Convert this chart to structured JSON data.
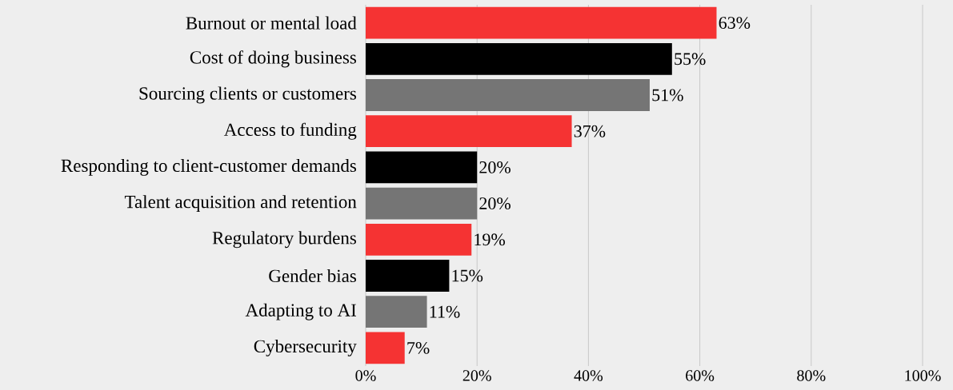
{
  "chart_data": {
    "type": "bar",
    "orientation": "horizontal",
    "categories": [
      "Burnout or mental load",
      "Cost of doing business",
      "Sourcing clients or customers",
      "Access to funding",
      "Responding to client-customer demands",
      "Talent acquisition and retention",
      "Regulatory burdens",
      "Gender bias",
      "Adapting to AI",
      "Cybersecurity"
    ],
    "values": [
      63,
      55,
      51,
      37,
      20,
      20,
      19,
      15,
      11,
      7
    ],
    "value_labels": [
      "63%",
      "55%",
      "51%",
      "37%",
      "20%",
      "20%",
      "19%",
      "15%",
      "11%",
      "7%"
    ],
    "colors": [
      "#f53333",
      "#000000",
      "#757575",
      "#f53333",
      "#000000",
      "#757575",
      "#f53333",
      "#000000",
      "#757575",
      "#f53333"
    ],
    "xlim": [
      0,
      100
    ],
    "xticks": [
      {
        "value": 0,
        "label": "0%"
      },
      {
        "value": 20,
        "label": "20%"
      },
      {
        "value": 40,
        "label": "40%"
      },
      {
        "value": 60,
        "label": "60%"
      },
      {
        "value": 80,
        "label": "80%"
      },
      {
        "value": 100,
        "label": "100%"
      }
    ],
    "grid": "x"
  }
}
